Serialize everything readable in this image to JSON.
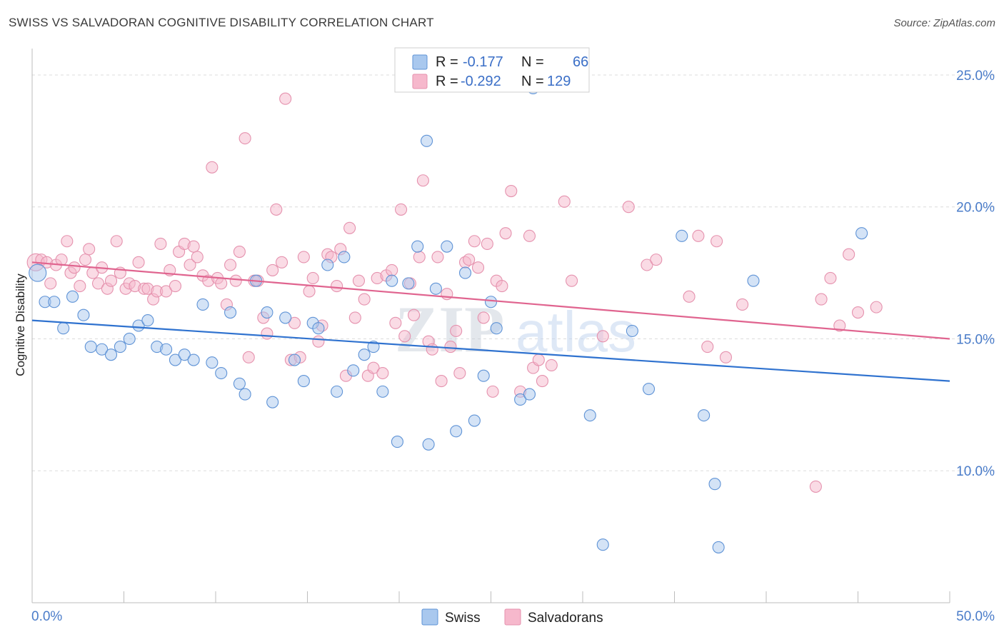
{
  "header": {
    "title": "SWISS VS SALVADORAN COGNITIVE DISABILITY CORRELATION CHART",
    "source": "Source: ZipAtlas.com"
  },
  "colors": {
    "swiss_fill": "#a9c8ee",
    "swiss_stroke": "#5f93d6",
    "swiss_line": "#2f72cf",
    "salv_fill": "#f6b8cc",
    "salv_stroke": "#e592ae",
    "salv_line": "#e0648f",
    "grid": "#dcdcdc",
    "tick_text": "#4a7cc9"
  },
  "legend": {
    "row1": {
      "r_label": "R =",
      "r_value": "-0.177",
      "n_label": "N =",
      "n_value": "66"
    },
    "row2": {
      "r_label": "R =",
      "r_value": "-0.292",
      "n_label": "N =",
      "n_value": "129"
    }
  },
  "bottom_legend": {
    "swiss": "Swiss",
    "salvadorans": "Salvadorans"
  },
  "watermark": {
    "zip": "ZIP",
    "atlas": "atlas"
  },
  "chart_data": {
    "type": "scatter",
    "title": "SWISS VS SALVADORAN COGNITIVE DISABILITY CORRELATION CHART",
    "xlabel": "",
    "ylabel": "Cognitive Disability",
    "xlim": [
      0,
      50
    ],
    "ylim": [
      5,
      26
    ],
    "x_tick_labels": [
      "0.0%",
      "50.0%"
    ],
    "y_ticks": [
      10,
      15,
      20,
      25
    ],
    "y_tick_labels": [
      "10.0%",
      "15.0%",
      "20.0%",
      "25.0%"
    ],
    "grid": true,
    "legend_position": "top-center",
    "series": [
      {
        "name": "Swiss",
        "r": -0.177,
        "n": 66,
        "trend": {
          "x": [
            0,
            50
          ],
          "y": [
            15.7,
            13.4
          ]
        },
        "points": [
          [
            0.3,
            17.5
          ],
          [
            0.7,
            16.4
          ],
          [
            1.2,
            16.4
          ],
          [
            1.7,
            15.4
          ],
          [
            2.2,
            16.6
          ],
          [
            2.8,
            15.9
          ],
          [
            3.2,
            14.7
          ],
          [
            3.8,
            14.6
          ],
          [
            4.3,
            14.4
          ],
          [
            4.8,
            14.7
          ],
          [
            5.3,
            15.0
          ],
          [
            5.8,
            15.5
          ],
          [
            6.3,
            15.7
          ],
          [
            6.8,
            14.7
          ],
          [
            7.3,
            14.6
          ],
          [
            7.8,
            14.2
          ],
          [
            8.3,
            14.4
          ],
          [
            8.8,
            14.2
          ],
          [
            9.3,
            16.3
          ],
          [
            9.8,
            14.1
          ],
          [
            10.3,
            13.7
          ],
          [
            10.8,
            16.0
          ],
          [
            11.3,
            13.3
          ],
          [
            11.6,
            12.9
          ],
          [
            12.2,
            17.2
          ],
          [
            12.8,
            16.0
          ],
          [
            13.1,
            12.6
          ],
          [
            13.8,
            15.8
          ],
          [
            14.3,
            14.2
          ],
          [
            14.8,
            13.4
          ],
          [
            15.3,
            15.6
          ],
          [
            15.6,
            15.4
          ],
          [
            16.1,
            17.8
          ],
          [
            16.6,
            13.0
          ],
          [
            17.0,
            18.1
          ],
          [
            17.5,
            13.8
          ],
          [
            18.1,
            14.4
          ],
          [
            18.6,
            14.7
          ],
          [
            19.1,
            13.0
          ],
          [
            19.6,
            17.2
          ],
          [
            19.9,
            11.1
          ],
          [
            20.5,
            17.1
          ],
          [
            21.0,
            18.5
          ],
          [
            21.5,
            22.5
          ],
          [
            21.6,
            11.0
          ],
          [
            22.0,
            16.9
          ],
          [
            22.6,
            18.5
          ],
          [
            23.1,
            11.5
          ],
          [
            23.6,
            17.5
          ],
          [
            24.1,
            11.9
          ],
          [
            24.6,
            13.6
          ],
          [
            25.0,
            16.4
          ],
          [
            25.3,
            15.4
          ],
          [
            26.6,
            12.7
          ],
          [
            27.1,
            12.9
          ],
          [
            27.3,
            24.5
          ],
          [
            30.4,
            12.1
          ],
          [
            31.1,
            7.2
          ],
          [
            32.7,
            15.3
          ],
          [
            33.6,
            13.1
          ],
          [
            35.4,
            18.9
          ],
          [
            36.6,
            12.1
          ],
          [
            37.2,
            9.5
          ],
          [
            37.4,
            7.1
          ],
          [
            39.3,
            17.2
          ],
          [
            45.2,
            19.0
          ]
        ]
      },
      {
        "name": "Salvadorans",
        "r": -0.292,
        "n": 129,
        "trend": {
          "x": [
            0,
            50
          ],
          "y": [
            17.9,
            15.0
          ]
        },
        "points": [
          [
            0.2,
            17.9
          ],
          [
            0.5,
            18.0
          ],
          [
            0.8,
            17.9
          ],
          [
            1.0,
            17.1
          ],
          [
            1.3,
            17.8
          ],
          [
            1.6,
            18.0
          ],
          [
            1.9,
            18.7
          ],
          [
            2.1,
            17.5
          ],
          [
            2.3,
            17.7
          ],
          [
            2.6,
            17.0
          ],
          [
            2.9,
            18.0
          ],
          [
            3.1,
            18.4
          ],
          [
            3.3,
            17.5
          ],
          [
            3.6,
            17.1
          ],
          [
            3.8,
            17.7
          ],
          [
            4.1,
            16.9
          ],
          [
            4.3,
            17.2
          ],
          [
            4.6,
            18.7
          ],
          [
            4.8,
            17.5
          ],
          [
            5.1,
            16.9
          ],
          [
            5.3,
            17.1
          ],
          [
            5.6,
            17.0
          ],
          [
            5.8,
            17.9
          ],
          [
            6.1,
            16.9
          ],
          [
            6.3,
            16.9
          ],
          [
            6.6,
            16.5
          ],
          [
            6.8,
            16.8
          ],
          [
            7.0,
            18.6
          ],
          [
            7.3,
            16.8
          ],
          [
            7.5,
            17.6
          ],
          [
            7.8,
            17.0
          ],
          [
            8.0,
            18.3
          ],
          [
            8.3,
            18.6
          ],
          [
            8.6,
            17.8
          ],
          [
            8.8,
            18.5
          ],
          [
            9.0,
            18.1
          ],
          [
            9.3,
            17.4
          ],
          [
            9.6,
            17.2
          ],
          [
            9.8,
            21.5
          ],
          [
            10.1,
            17.3
          ],
          [
            10.3,
            17.1
          ],
          [
            10.6,
            16.3
          ],
          [
            10.8,
            17.8
          ],
          [
            11.1,
            17.2
          ],
          [
            11.3,
            18.3
          ],
          [
            11.6,
            22.6
          ],
          [
            11.8,
            14.3
          ],
          [
            12.1,
            17.2
          ],
          [
            12.3,
            17.2
          ],
          [
            12.6,
            15.8
          ],
          [
            12.8,
            15.2
          ],
          [
            13.1,
            17.6
          ],
          [
            13.3,
            19.9
          ],
          [
            13.6,
            17.9
          ],
          [
            13.8,
            24.1
          ],
          [
            14.1,
            14.2
          ],
          [
            14.3,
            15.6
          ],
          [
            14.6,
            14.3
          ],
          [
            14.8,
            18.1
          ],
          [
            15.1,
            16.8
          ],
          [
            15.3,
            17.3
          ],
          [
            15.6,
            14.9
          ],
          [
            15.8,
            15.5
          ],
          [
            16.1,
            18.2
          ],
          [
            16.3,
            18.1
          ],
          [
            16.6,
            17.0
          ],
          [
            16.8,
            18.4
          ],
          [
            17.1,
            13.6
          ],
          [
            17.3,
            19.2
          ],
          [
            17.6,
            15.8
          ],
          [
            17.8,
            17.2
          ],
          [
            18.1,
            16.5
          ],
          [
            18.3,
            13.6
          ],
          [
            18.6,
            13.9
          ],
          [
            18.8,
            17.3
          ],
          [
            19.1,
            13.7
          ],
          [
            19.3,
            17.4
          ],
          [
            19.6,
            17.6
          ],
          [
            19.8,
            15.6
          ],
          [
            20.1,
            19.9
          ],
          [
            20.3,
            15.1
          ],
          [
            20.6,
            17.1
          ],
          [
            20.8,
            15.9
          ],
          [
            21.1,
            18.1
          ],
          [
            21.3,
            21.0
          ],
          [
            21.6,
            14.9
          ],
          [
            21.8,
            14.6
          ],
          [
            22.1,
            18.1
          ],
          [
            22.3,
            13.4
          ],
          [
            22.6,
            16.7
          ],
          [
            22.8,
            14.7
          ],
          [
            23.1,
            15.3
          ],
          [
            23.3,
            13.7
          ],
          [
            23.6,
            17.9
          ],
          [
            23.8,
            18.0
          ],
          [
            24.1,
            18.7
          ],
          [
            24.3,
            17.7
          ],
          [
            24.6,
            15.8
          ],
          [
            24.8,
            18.6
          ],
          [
            25.1,
            13.0
          ],
          [
            25.3,
            17.2
          ],
          [
            25.6,
            17.0
          ],
          [
            25.8,
            19.0
          ],
          [
            26.1,
            20.6
          ],
          [
            26.6,
            13.0
          ],
          [
            27.1,
            18.9
          ],
          [
            27.3,
            13.9
          ],
          [
            27.6,
            14.2
          ],
          [
            27.8,
            13.4
          ],
          [
            28.3,
            14.0
          ],
          [
            29.0,
            20.2
          ],
          [
            29.4,
            17.2
          ],
          [
            31.1,
            15.1
          ],
          [
            32.5,
            20.0
          ],
          [
            33.5,
            17.8
          ],
          [
            34.0,
            18.0
          ],
          [
            35.8,
            16.6
          ],
          [
            36.3,
            18.9
          ],
          [
            36.8,
            14.7
          ],
          [
            37.3,
            18.7
          ],
          [
            37.8,
            14.3
          ],
          [
            38.7,
            16.3
          ],
          [
            42.7,
            9.4
          ],
          [
            43.0,
            16.5
          ],
          [
            43.5,
            17.3
          ],
          [
            44.0,
            15.5
          ],
          [
            44.5,
            18.2
          ],
          [
            45.0,
            16.0
          ],
          [
            46.0,
            16.2
          ]
        ]
      }
    ]
  }
}
